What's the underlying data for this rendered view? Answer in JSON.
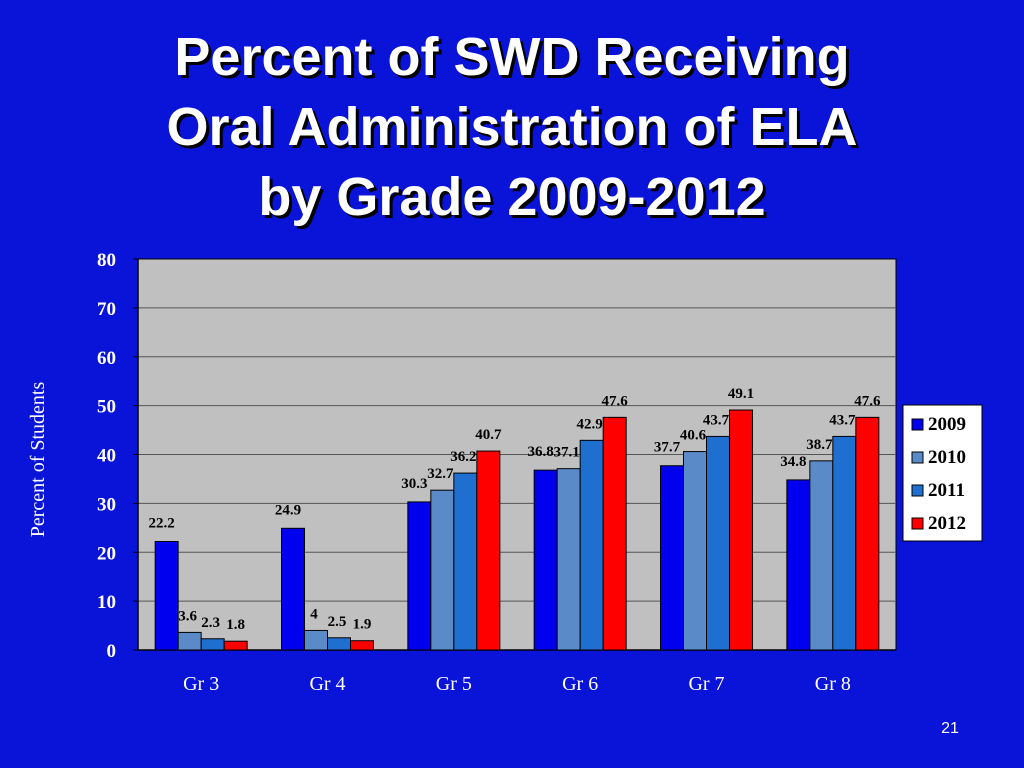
{
  "slide": {
    "title_lines": [
      "Percent of SWD Receiving",
      "Oral Administration of ELA",
      "by Grade 2009-2012"
    ],
    "page_number": "21"
  },
  "colors": {
    "background": "#0a14d8",
    "plot_bg": "#c0c0c0",
    "series": [
      "#0000ee",
      "#5b8ac8",
      "#1f6fd1",
      "#ff0000"
    ]
  },
  "chart_data": {
    "type": "bar",
    "title": "Percent of SWD Receiving Oral Administration of ELA by Grade 2009-2012",
    "categories": [
      "Gr 3",
      "Gr 4",
      "Gr 5",
      "Gr 6",
      "Gr 7",
      "Gr 8"
    ],
    "series": [
      {
        "name": "2009",
        "values": [
          22.2,
          24.9,
          30.3,
          36.8,
          37.7,
          34.8
        ],
        "labels": [
          "22.2",
          "24.9",
          "30.3",
          "36.8",
          "37.7",
          "34.8"
        ]
      },
      {
        "name": "2010",
        "values": [
          3.6,
          4,
          32.7,
          37.1,
          40.6,
          38.7
        ],
        "labels": [
          "3.6",
          "4",
          "32.7",
          "37.1",
          "40.6",
          "38.7"
        ]
      },
      {
        "name": "2011",
        "values": [
          2.3,
          2.5,
          36.2,
          42.9,
          43.7,
          43.7
        ],
        "labels": [
          "2.3",
          "2.5",
          "36.2",
          "42.9",
          "43.7",
          "43.7"
        ]
      },
      {
        "name": "2012",
        "values": [
          1.8,
          1.9,
          40.7,
          47.6,
          49.1,
          47.6
        ],
        "labels": [
          "1.8",
          "1.9",
          "40.7",
          "47.6",
          "49.1",
          "47.6"
        ]
      }
    ],
    "xlabel": "",
    "ylabel": "Percent of Students",
    "ylim": [
      0,
      80
    ],
    "yticks": [
      "0",
      "10",
      "20",
      "30",
      "40",
      "50",
      "60",
      "70",
      "80"
    ],
    "grid": true,
    "legend_position": "right"
  }
}
